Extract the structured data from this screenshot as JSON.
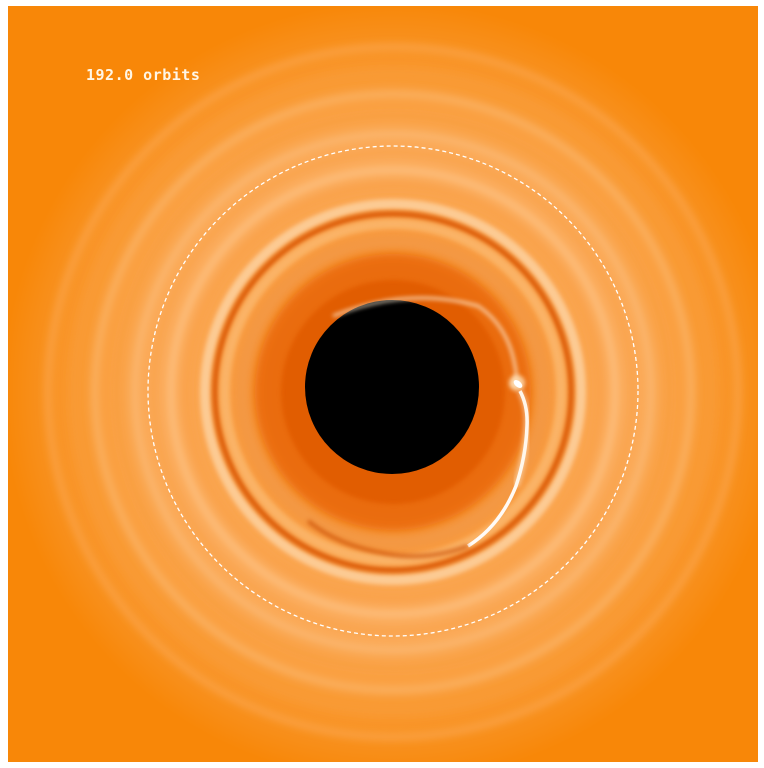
{
  "time_label": "192.0 orbits",
  "colors": {
    "background": "#f88708",
    "disk_light": "#fbb468",
    "disk_dark": "#e25f00",
    "cavity": "#000000",
    "annotation": "#ffffff"
  }
}
